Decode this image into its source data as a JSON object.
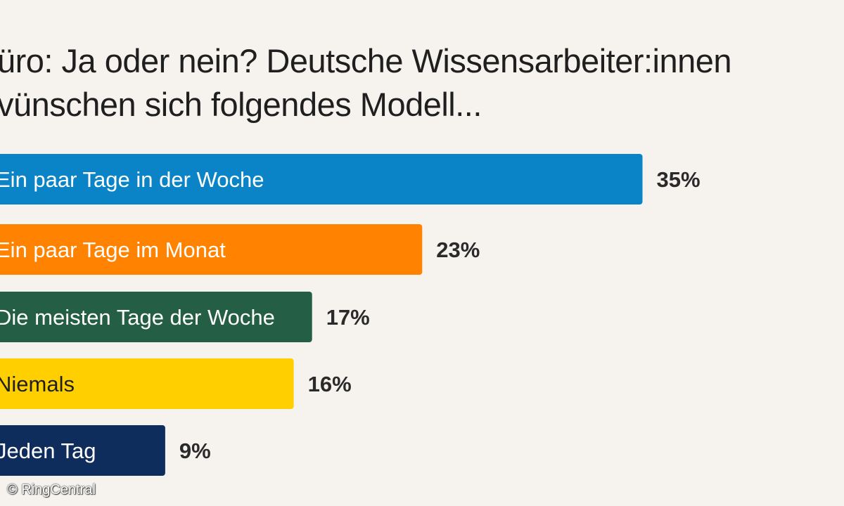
{
  "chart_data": {
    "type": "bar",
    "orientation": "horizontal",
    "title_lines": [
      "üro: Ja oder nein? Deutsche Wissensarbeiter:innen",
      "vünschen sich folgendes Modell..."
    ],
    "categories": [
      "Ein paar Tage in der Woche",
      "Ein paar Tage im Monat",
      "Die meisten Tage der Woche",
      "Niemals",
      "Jeden Tag"
    ],
    "values": [
      35,
      23,
      17,
      16,
      9
    ],
    "value_labels": [
      "35%",
      "23%",
      "17%",
      "16%",
      "9%"
    ],
    "unit": "%",
    "xlim": [
      0,
      38
    ],
    "grid": false,
    "legend": "none",
    "colors": [
      "#0a84c6",
      "#ff8200",
      "#245f45",
      "#ffcf00",
      "#0e2c5c"
    ],
    "label_text_colors": [
      "#ffffff",
      "#ffffff",
      "#ffffff",
      "#1f1f1f",
      "#ffffff"
    ]
  },
  "footer": {
    "copyright": "© RingCentral"
  }
}
